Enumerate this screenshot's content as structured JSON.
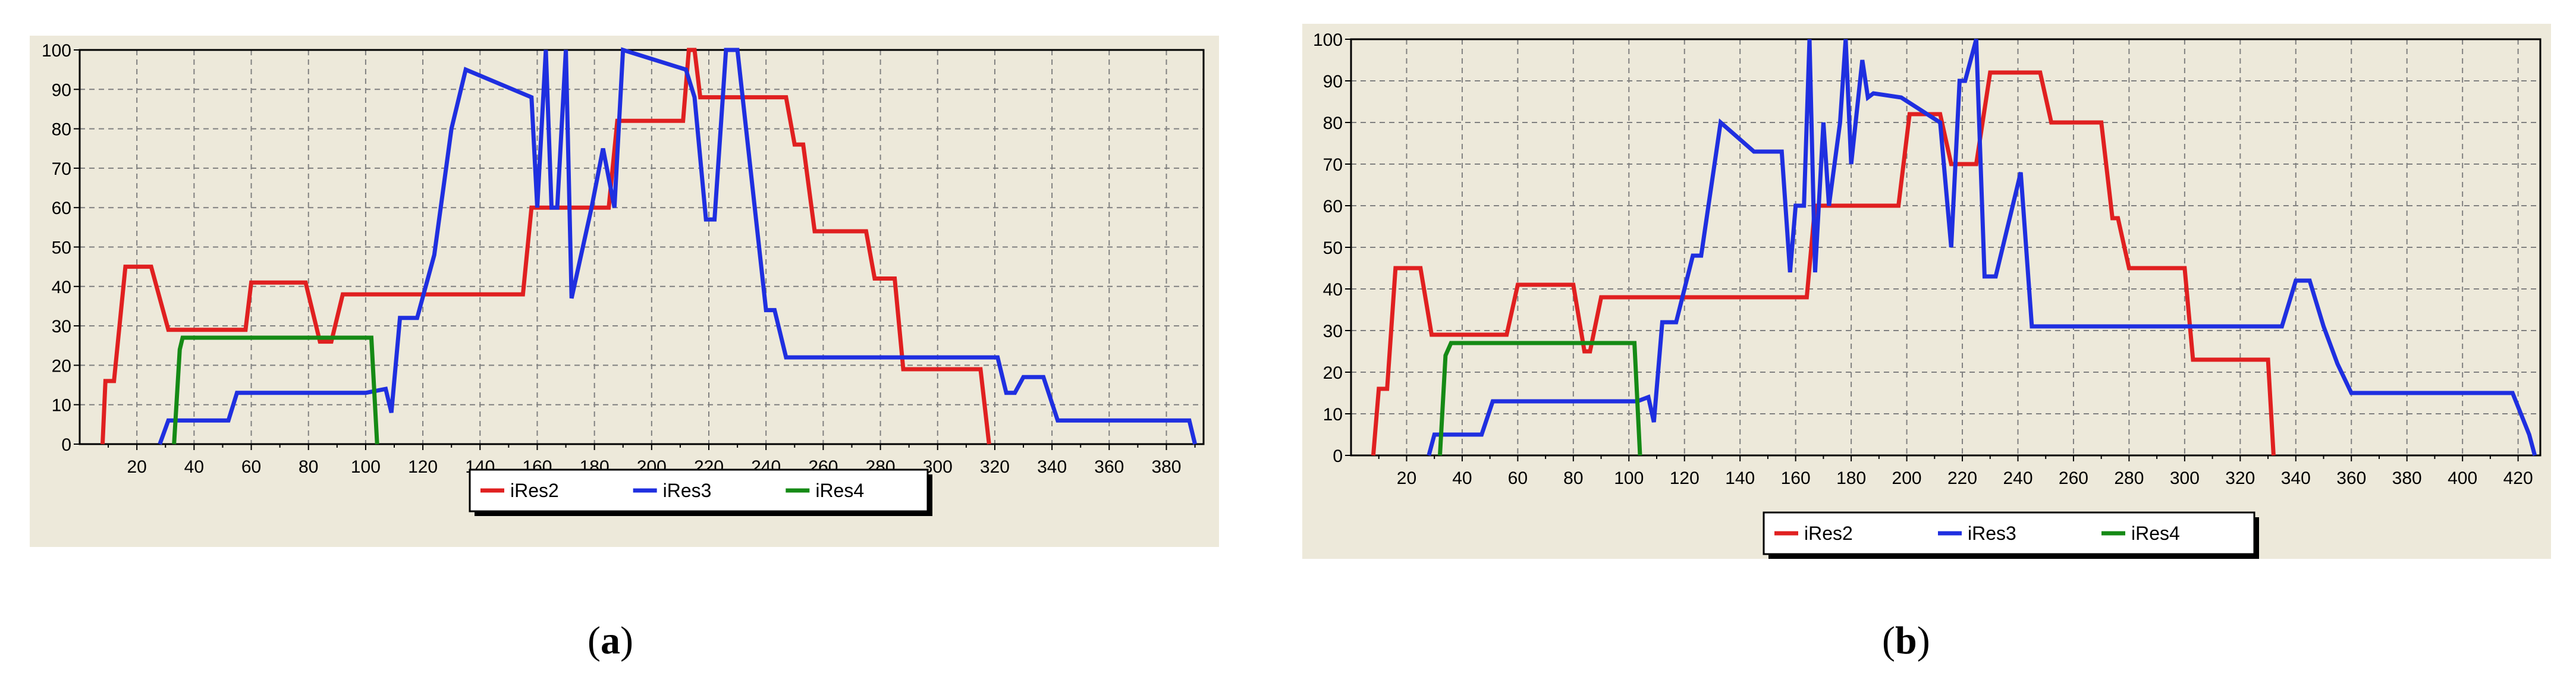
{
  "colors": {
    "panel_bg": "#ede9da",
    "plot_bg": "#ede9da",
    "grid": "#808080",
    "axis": "#000000",
    "iRes2": "#e02020",
    "iRes3": "#1f2fe0",
    "iRes4": "#158a15"
  },
  "captions": {
    "a": {
      "open": "(",
      "letter": "a",
      "close": ")"
    },
    "b": {
      "open": "(",
      "letter": "b",
      "close": ")"
    }
  },
  "chart_data": [
    {
      "id": "a",
      "type": "line",
      "step": true,
      "title": "",
      "xlabel": "",
      "ylabel": "",
      "xlim": [
        0,
        393
      ],
      "ylim": [
        0,
        100
      ],
      "xticks": [
        20,
        40,
        60,
        80,
        100,
        120,
        140,
        160,
        180,
        200,
        220,
        240,
        260,
        280,
        300,
        320,
        340,
        360,
        380
      ],
      "yticks": [
        0,
        10,
        20,
        30,
        40,
        50,
        60,
        70,
        80,
        90,
        100
      ],
      "grid": true,
      "legend": {
        "position": "bottom",
        "entries": [
          "iRes2",
          "iRes3",
          "iRes4"
        ]
      },
      "series": [
        {
          "name": "iRes2",
          "color": "#e02020",
          "x": [
            8,
            9,
            12,
            16,
            25,
            31,
            58,
            60,
            79,
            84,
            88,
            92,
            142,
            146,
            155,
            158,
            175,
            178,
            185,
            188,
            211,
            213,
            215,
            217,
            247,
            250,
            253,
            257,
            275,
            278,
            285,
            288,
            315,
            318
          ],
          "y": [
            0,
            16,
            16,
            45,
            45,
            29,
            29,
            41,
            41,
            26,
            26,
            38,
            38,
            38,
            38,
            60,
            60,
            60,
            60,
            82,
            82,
            100,
            100,
            88,
            88,
            76,
            76,
            54,
            54,
            42,
            42,
            19,
            19,
            0
          ]
        },
        {
          "name": "iRes3",
          "color": "#1f2fe0",
          "x": [
            28,
            31,
            52,
            55,
            100,
            107,
            109,
            112,
            118,
            124,
            130,
            135,
            158,
            160,
            163,
            165,
            167,
            170,
            172,
            179,
            183,
            187,
            190,
            212,
            215,
            219,
            222,
            226,
            230,
            240,
            243,
            247,
            321,
            324,
            327,
            330,
            337,
            342,
            388,
            390
          ],
          "y": [
            0,
            6,
            6,
            13,
            13,
            14,
            8,
            32,
            32,
            48,
            80,
            95,
            88,
            60,
            100,
            60,
            60,
            100,
            37,
            60,
            75,
            60,
            100,
            95,
            88,
            57,
            57,
            100,
            100,
            34,
            34,
            22,
            22,
            13,
            13,
            17,
            17,
            6,
            6,
            0
          ]
        },
        {
          "name": "iRes4",
          "color": "#158a15",
          "x": [
            33,
            34,
            35,
            36,
            102,
            104
          ],
          "y": [
            0,
            12,
            24,
            27,
            27,
            0
          ]
        }
      ]
    },
    {
      "id": "b",
      "type": "line",
      "step": true,
      "title": "",
      "xlabel": "",
      "ylabel": "",
      "xlim": [
        0,
        428
      ],
      "ylim": [
        0,
        100
      ],
      "xticks": [
        20,
        40,
        60,
        80,
        100,
        120,
        140,
        160,
        180,
        200,
        220,
        240,
        260,
        280,
        300,
        320,
        340,
        360,
        380,
        400,
        420
      ],
      "yticks": [
        0,
        10,
        20,
        30,
        40,
        50,
        60,
        70,
        80,
        90,
        100
      ],
      "grid": true,
      "legend": {
        "position": "bottom",
        "entries": [
          "iRes2",
          "iRes3",
          "iRes4"
        ]
      },
      "series": [
        {
          "name": "iRes2",
          "color": "#e02020",
          "x": [
            8,
            10,
            13,
            16,
            25,
            29,
            56,
            60,
            80,
            84,
            86,
            90,
            164,
            167,
            197,
            201,
            212,
            216,
            225,
            230,
            248,
            252,
            270,
            274,
            276,
            280,
            300,
            303,
            330,
            332
          ],
          "y": [
            0,
            16,
            16,
            45,
            45,
            29,
            29,
            41,
            41,
            25,
            25,
            38,
            38,
            60,
            60,
            82,
            82,
            70,
            70,
            92,
            92,
            80,
            80,
            57,
            57,
            45,
            45,
            23,
            23,
            0
          ]
        },
        {
          "name": "iRes3",
          "color": "#1f2fe0",
          "x": [
            28,
            30,
            47,
            51,
            103,
            107,
            109,
            112,
            117,
            123,
            126,
            133,
            145,
            155,
            158,
            160,
            163,
            165,
            167,
            170,
            172,
            176,
            178,
            180,
            184,
            186,
            188,
            198,
            212,
            216,
            219,
            221,
            225,
            228,
            232,
            241,
            245,
            250,
            335,
            340,
            345,
            350,
            355,
            360,
            372,
            418,
            424,
            426
          ],
          "y": [
            0,
            5,
            5,
            13,
            13,
            14,
            8,
            32,
            32,
            48,
            48,
            80,
            73,
            73,
            44,
            60,
            60,
            100,
            44,
            80,
            60,
            80,
            100,
            70,
            95,
            86,
            87,
            86,
            80,
            50,
            90,
            90,
            100,
            43,
            43,
            68,
            31,
            31,
            31,
            42,
            42,
            31,
            22,
            15,
            15,
            15,
            5,
            0
          ]
        },
        {
          "name": "iRes4",
          "color": "#158a15",
          "x": [
            32,
            33,
            34,
            36,
            102,
            104
          ],
          "y": [
            0,
            12,
            24,
            27,
            27,
            0
          ]
        }
      ]
    }
  ]
}
